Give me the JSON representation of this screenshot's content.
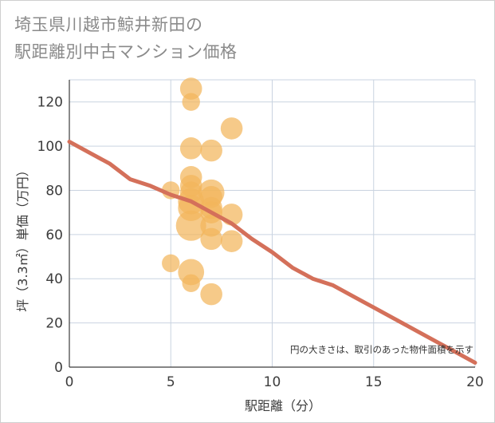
{
  "chart_data": {
    "type": "scatter",
    "title_lines": [
      "埼玉県川越市鯨井新田の",
      "駅距離別中古マンション価格"
    ],
    "xlabel": "駅距離（分）",
    "ylabel": "坪（3.3㎡）単価（万円）",
    "xlim": [
      0,
      20
    ],
    "ylim": [
      0,
      130
    ],
    "xticks": [
      0,
      5,
      10,
      15,
      20
    ],
    "yticks": [
      0,
      20,
      40,
      60,
      80,
      100,
      120
    ],
    "grid": true,
    "note": "円の大きさは、取引のあった物件面積を示す",
    "points": [
      {
        "x": 6,
        "y": 126,
        "size": 3
      },
      {
        "x": 6,
        "y": 120,
        "size": 2
      },
      {
        "x": 6,
        "y": 99,
        "size": 3
      },
      {
        "x": 6,
        "y": 86,
        "size": 3
      },
      {
        "x": 6,
        "y": 82,
        "size": 3
      },
      {
        "x": 6,
        "y": 79,
        "size": 3
      },
      {
        "x": 6,
        "y": 75,
        "size": 4
      },
      {
        "x": 6,
        "y": 72,
        "size": 4
      },
      {
        "x": 6,
        "y": 64,
        "size": 5
      },
      {
        "x": 6,
        "y": 43,
        "size": 4
      },
      {
        "x": 6,
        "y": 38,
        "size": 2
      },
      {
        "x": 5,
        "y": 80,
        "size": 2
      },
      {
        "x": 5,
        "y": 47,
        "size": 2
      },
      {
        "x": 7,
        "y": 98,
        "size": 3
      },
      {
        "x": 7,
        "y": 79,
        "size": 4
      },
      {
        "x": 7,
        "y": 77,
        "size": 3
      },
      {
        "x": 7,
        "y": 72,
        "size": 3
      },
      {
        "x": 7,
        "y": 70,
        "size": 3
      },
      {
        "x": 7,
        "y": 64,
        "size": 3
      },
      {
        "x": 7,
        "y": 58,
        "size": 3
      },
      {
        "x": 7,
        "y": 33,
        "size": 3
      },
      {
        "x": 8,
        "y": 108,
        "size": 3
      },
      {
        "x": 8,
        "y": 69,
        "size": 3
      },
      {
        "x": 8,
        "y": 57,
        "size": 3
      }
    ],
    "trend": {
      "x": [
        0,
        1,
        2,
        3,
        4,
        5,
        6,
        7,
        8,
        9,
        10,
        11,
        12,
        13,
        14,
        15,
        16,
        17,
        18,
        19,
        20
      ],
      "y": [
        102,
        97,
        92,
        85,
        82,
        78,
        75,
        70,
        65,
        58,
        52,
        45,
        40,
        37,
        32,
        27,
        22,
        17,
        12,
        7,
        2
      ]
    },
    "colors": {
      "bubble": "#f2b55c",
      "trend": "#d4705a",
      "grid": "#c9d3e0",
      "axis": "#3c3c3c"
    }
  }
}
